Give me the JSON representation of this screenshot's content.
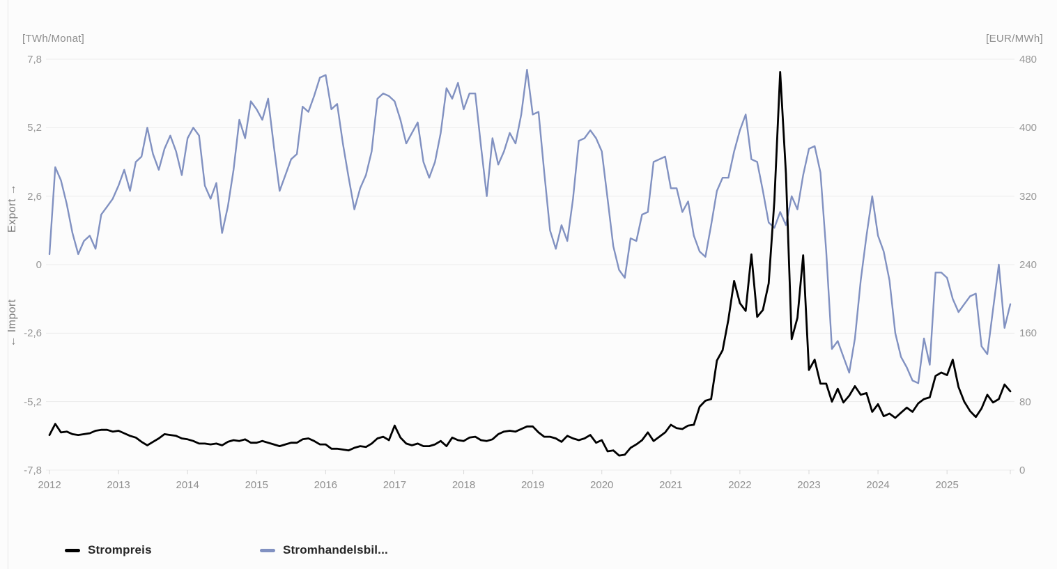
{
  "page": {
    "background": "#fcfcfc",
    "grid_color": "#ebebeb",
    "tick_color": "#d9d9d9"
  },
  "chart_data": {
    "type": "line",
    "title": "",
    "x_start": "2012-01",
    "x_end": "2025-12",
    "points_per_year": 12,
    "grid": true,
    "legend_position": "bottom",
    "x_axis": {
      "years": [
        "2012",
        "2013",
        "2014",
        "2015",
        "2016",
        "2017",
        "2018",
        "2019",
        "2020",
        "2021",
        "2022",
        "2023",
        "2024",
        "2025"
      ]
    },
    "left_axis": {
      "unit": "[TWh/Monat]",
      "min": -7.8,
      "max": 7.8,
      "tick_labels": [
        "7,8",
        "5,2",
        "2,6",
        "0",
        "-2,6",
        "-5,2",
        "-7,8"
      ],
      "direction_up": "Export →",
      "direction_down": "← Import"
    },
    "right_axis": {
      "unit": "[EUR/MWh]",
      "min": 0,
      "max": 480,
      "tick_labels": [
        "480",
        "400",
        "320",
        "240",
        "160",
        "80",
        "0"
      ]
    },
    "series": [
      {
        "name": "Strompreis",
        "legend_label": "Strompreis",
        "axis": "right",
        "unit": "EUR/MWh",
        "color": "#000000",
        "stroke_width": 2.8,
        "values": [
          41,
          54,
          44,
          45,
          42,
          41,
          42,
          43,
          46,
          47,
          47,
          45,
          46,
          43,
          40,
          38,
          33,
          29,
          33,
          37,
          42,
          41,
          40,
          37,
          36,
          34,
          31,
          31,
          30,
          31,
          29,
          33,
          35,
          34,
          36,
          32,
          32,
          34,
          32,
          30,
          28,
          30,
          32,
          32,
          36,
          37,
          34,
          30,
          30,
          25,
          25,
          24,
          23,
          26,
          28,
          27,
          31,
          37,
          39,
          35,
          52,
          38,
          31,
          29,
          31,
          28,
          28,
          30,
          34,
          28,
          38,
          35,
          34,
          38,
          39,
          35,
          34,
          36,
          42,
          45,
          46,
          45,
          48,
          51,
          51,
          44,
          39,
          39,
          37,
          33,
          40,
          37,
          35,
          37,
          41,
          32,
          35,
          22,
          23,
          17,
          18,
          26,
          30,
          35,
          44,
          34,
          39,
          44,
          53,
          49,
          48,
          52,
          53,
          74,
          81,
          83,
          128,
          140,
          176,
          221,
          195,
          186,
          252,
          179,
          187,
          218,
          315,
          465,
          346,
          153,
          178,
          251,
          117,
          129,
          101,
          101,
          80,
          95,
          79,
          87,
          98,
          88,
          90,
          68,
          77,
          63,
          66,
          61,
          67,
          73,
          68,
          78,
          83,
          85,
          110,
          114,
          111,
          129,
          97,
          80,
          69,
          62,
          72,
          88,
          79,
          83,
          100,
          92
        ]
      },
      {
        "name": "Stromhandelsbilanz",
        "legend_label": "Stromhandelsbil...",
        "axis": "left",
        "unit": "TWh/Monat",
        "color": "#8191c1",
        "stroke_width": 2.4,
        "values": [
          0.4,
          3.7,
          3.2,
          2.3,
          1.2,
          0.4,
          0.9,
          1.1,
          0.6,
          1.9,
          2.2,
          2.5,
          3.0,
          3.6,
          2.8,
          3.9,
          4.1,
          5.2,
          4.2,
          3.6,
          4.4,
          4.9,
          4.3,
          3.4,
          4.8,
          5.2,
          4.9,
          3.0,
          2.5,
          3.1,
          1.2,
          2.2,
          3.6,
          5.5,
          4.8,
          6.2,
          5.9,
          5.5,
          6.3,
          4.5,
          2.8,
          3.4,
          4.0,
          4.2,
          6.0,
          5.8,
          6.4,
          7.1,
          7.2,
          5.9,
          6.1,
          4.6,
          3.3,
          2.1,
          2.9,
          3.4,
          4.3,
          6.3,
          6.5,
          6.4,
          6.2,
          5.5,
          4.6,
          5.0,
          5.4,
          3.9,
          3.3,
          3.9,
          5.0,
          6.7,
          6.3,
          6.9,
          5.9,
          6.5,
          6.5,
          4.5,
          2.6,
          4.8,
          3.8,
          4.3,
          5.0,
          4.6,
          5.7,
          7.4,
          5.7,
          5.8,
          3.5,
          1.3,
          0.6,
          1.5,
          0.9,
          2.5,
          4.7,
          4.8,
          5.1,
          4.8,
          4.3,
          2.5,
          0.7,
          -0.2,
          -0.5,
          1.0,
          0.9,
          1.9,
          2.0,
          3.9,
          4.0,
          4.1,
          2.9,
          2.9,
          2.0,
          2.4,
          1.1,
          0.5,
          0.3,
          1.5,
          2.8,
          3.3,
          3.3,
          4.3,
          5.1,
          5.7,
          4.0,
          3.9,
          2.8,
          1.6,
          1.4,
          2.0,
          1.5,
          2.6,
          2.1,
          3.4,
          4.4,
          4.5,
          3.5,
          0.5,
          -3.2,
          -2.9,
          -3.5,
          -4.1,
          -2.8,
          -0.6,
          1.1,
          2.6,
          1.1,
          0.5,
          -0.6,
          -2.6,
          -3.5,
          -3.9,
          -4.4,
          -4.5,
          -2.8,
          -3.8,
          -0.3,
          -0.3,
          -0.5,
          -1.3,
          -1.8,
          -1.5,
          -1.2,
          -1.1,
          -3.1,
          -3.4,
          -1.7,
          0.0,
          -2.4,
          -1.5
        ]
      }
    ]
  }
}
